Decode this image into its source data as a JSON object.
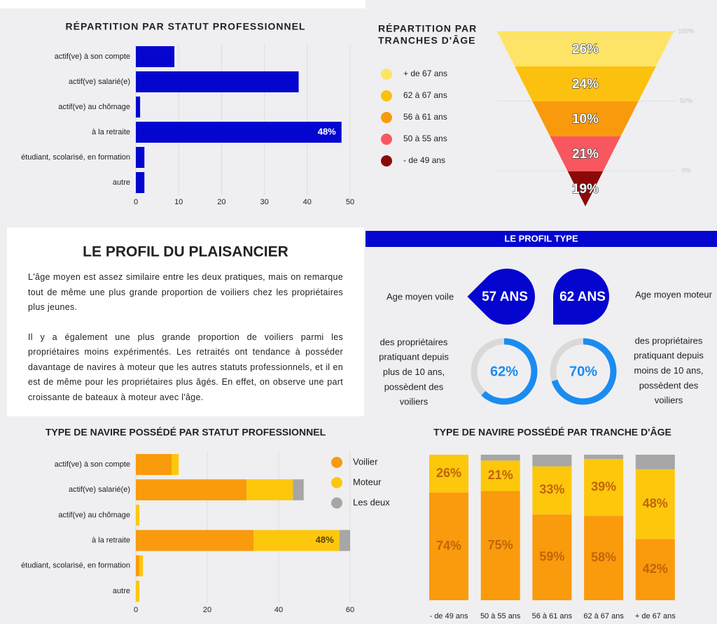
{
  "chart_data": [
    {
      "type": "hbar",
      "title": "RÉPARTITION PAR STATUT PROFESSIONNEL",
      "categories": [
        "actif(ve) à son compte",
        "actif(ve) salarié(e)",
        "actif(ve) au chômage",
        "à la retraite",
        "étudiant, scolarisé, en formation",
        "autre"
      ],
      "values": [
        9,
        38,
        1,
        48,
        2,
        2
      ],
      "value_labels": [
        null,
        null,
        null,
        "48%",
        null,
        null
      ],
      "color": "#0505d0",
      "xlim": [
        0,
        50
      ],
      "xticks": [
        0,
        10,
        20,
        30,
        40,
        50
      ],
      "grid": true
    },
    {
      "type": "funnel",
      "title": [
        "RÉPARTITION PAR",
        "TRANCHES D'ÂGE"
      ],
      "categories": [
        "+ de 67 ans",
        "62 à 67 ans",
        "56 à 61 ans",
        "50 à 55 ans",
        "- de 49 ans"
      ],
      "colors": [
        "#fde466",
        "#fcc10f",
        "#f89a0c",
        "#f8575f",
        "#8c0909"
      ],
      "values": [
        26,
        24,
        10,
        21,
        19
      ],
      "value_labels": [
        "26%",
        "24%",
        "10%",
        "21%",
        "19%"
      ],
      "ylim": [
        0,
        100
      ],
      "yticks": [
        {
          "value": 100,
          "label": "100%"
        },
        {
          "value": 50,
          "label": "50%"
        },
        {
          "value": 0,
          "label": "0%"
        }
      ]
    },
    {
      "type": "stacked-hbar",
      "title": "TYPE DE NAVIRE POSSÉDÉ  PAR STATUT PROFESSIONNEL",
      "categories": [
        "actif(ve) à son compte",
        "actif(ve) salarié(e)",
        "actif(ve) au chômage",
        "à la retraite",
        "étudiant, scolarisé, en formation",
        "autre"
      ],
      "series": [
        {
          "name": "Voilier",
          "color": "#f99b0c",
          "values": [
            10,
            31,
            0,
            33,
            1,
            0
          ]
        },
        {
          "name": "Moteur",
          "color": "#fdc70c",
          "values": [
            2,
            13,
            1,
            24,
            1,
            1
          ]
        },
        {
          "name": "Les deux",
          "color": "#a6a6a6",
          "values": [
            0,
            3,
            0,
            3,
            0,
            0
          ]
        }
      ],
      "annotation": "48%",
      "xlim": [
        0,
        60
      ],
      "xticks": [
        0,
        20,
        40,
        60
      ]
    },
    {
      "type": "stacked-vbar",
      "title": "TYPE DE NAVIRE POSSÉDÉ  PAR TRANCHE D'ÂGE",
      "categories": [
        "- de 49 ans",
        "50 à 55 ans",
        "56 à 61 ans",
        "62 à 67 ans",
        "+ de 67 ans"
      ],
      "series": [
        {
          "name": "Voilier",
          "color": "#f99b0c",
          "values": [
            74,
            75,
            59,
            58,
            42
          ],
          "value_labels": [
            "74%",
            "75%",
            "59%",
            "58%",
            "42%"
          ]
        },
        {
          "name": "Moteur",
          "color": "#fdc70c",
          "values": [
            26,
            21,
            33,
            39,
            48
          ],
          "value_labels": [
            "26%",
            "21%",
            "33%",
            "39%",
            "48%"
          ]
        },
        {
          "name": "Les deux",
          "color": "#a6a6a6",
          "values": [
            0,
            4,
            8,
            3,
            10
          ]
        }
      ],
      "ylim": [
        0,
        100
      ]
    }
  ],
  "profile": {
    "title": "LE PROFIL DU PLAISANCIER",
    "paragraphs": [
      "L'âge moyen est assez similaire entre les deux pratiques, mais on remarque tout de même une plus grande proportion de voiliers chez les propriétaires plus jeunes.",
      "Il y a également une plus grande proportion de voiliers parmi les propriétaires moins expérimentés. Les retraités ont tendance à posséder davantage de navires à moteur que les autres statuts professionnels, et il en est de même pour les propriétaires plus âgés. En effet, on observe une  part croissante de bateaux à moteur avec l'âge."
    ]
  },
  "profile_type": {
    "header": "LE PROFIL TYPE",
    "voile_label": "Age moyen voile",
    "voile_age": "57 ANS",
    "moteur_age": "62 ANS",
    "moteur_label": "Age moyen moteur",
    "left_text": [
      "des propriétaires",
      "pratiquant depuis",
      "plus de 10 ans,",
      "possèdent des",
      "voiliers"
    ],
    "right_text": [
      "des propriétaires",
      "pratiquant depuis",
      "moins de 10 ans,",
      "possèdent des",
      "voiliers"
    ],
    "donuts": [
      {
        "value": 62,
        "label": "62%"
      },
      {
        "value": 70,
        "label": "70%"
      }
    ]
  }
}
